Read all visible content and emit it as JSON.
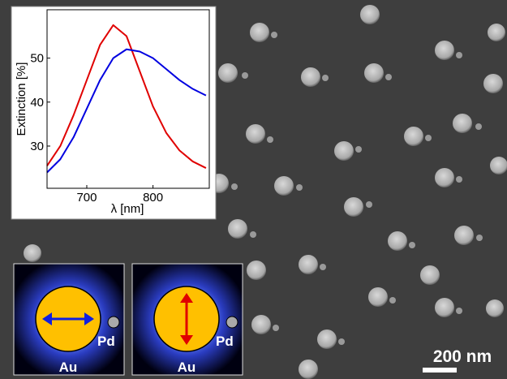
{
  "chart_data": {
    "type": "line",
    "x": [
      640,
      660,
      680,
      700,
      720,
      740,
      760,
      780,
      800,
      820,
      840,
      860,
      880
    ],
    "series": [
      {
        "color": "#e00000",
        "values": [
          25.5,
          30,
          37,
          45,
          53,
          57.5,
          55,
          47,
          39,
          33,
          29,
          26.5,
          25
        ]
      },
      {
        "color": "#0000e0",
        "values": [
          24,
          27,
          32,
          38.5,
          45,
          50,
          52,
          51.5,
          50,
          47.5,
          45,
          43,
          41.5
        ]
      }
    ],
    "xlabel": "λ [nm]",
    "ylabel": "Extinction [%]",
    "xlim": [
      640,
      885
    ],
    "ylim": [
      20.4,
      61
    ],
    "xticks": [
      700,
      800
    ],
    "yticks": [
      30,
      40,
      50
    ]
  },
  "annotations": {
    "left_panel": {
      "particle": "Au",
      "dot": "Pd"
    },
    "right_panel": {
      "particle": "Au",
      "dot": "Pd"
    },
    "scale_bar": "200 nm"
  }
}
